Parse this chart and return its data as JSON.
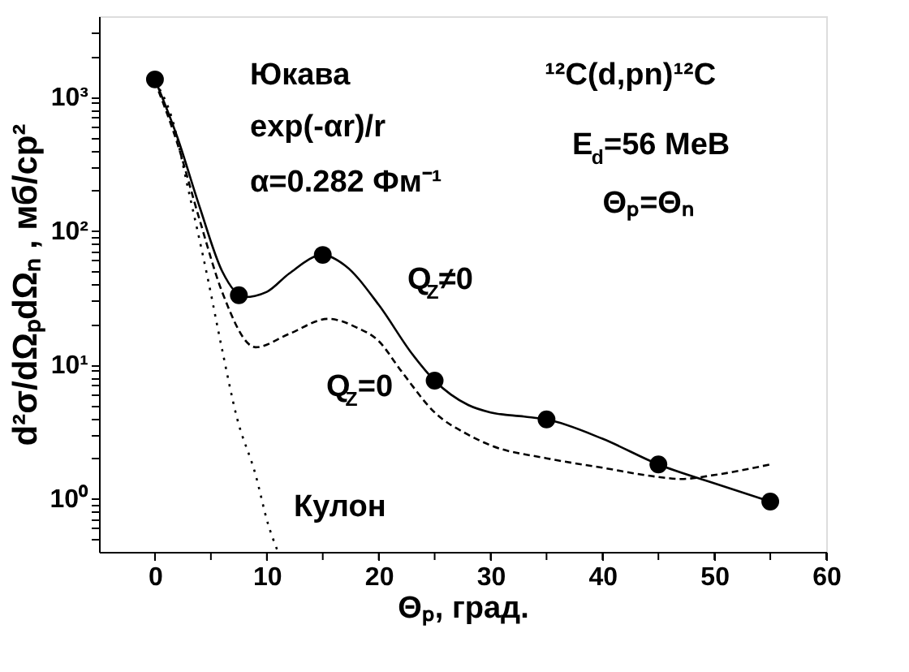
{
  "chart_data": {
    "type": "line",
    "xlabel": "Θₚ, град.",
    "ylabel": "d²σ/dΩₚdΩₙ , мб/ср²",
    "log": "y",
    "grid": false,
    "xlim": [
      -5,
      60
    ],
    "xticks": [
      0,
      {
        "value": 5,
        "label": null
      },
      10,
      {
        "value": 15,
        "label": null
      },
      20,
      {
        "value": 25,
        "label": null
      },
      30,
      {
        "value": 35,
        "label": null
      },
      40,
      {
        "value": 45,
        "label": null
      },
      50,
      {
        "value": 55,
        "label": null
      },
      60
    ],
    "ylim": [
      0.4,
      4000
    ],
    "yticks": [
      {
        "value": 0.5,
        "label": null
      },
      {
        "value": 0.6,
        "label": null
      },
      {
        "value": 0.7,
        "label": null
      },
      {
        "value": 0.8,
        "label": null
      },
      {
        "value": 0.9,
        "label": null
      },
      {
        "value": 1,
        "label": "10⁰"
      },
      {
        "value": 2,
        "label": null
      },
      {
        "value": 3,
        "label": null
      },
      {
        "value": 4,
        "label": null
      },
      {
        "value": 5,
        "label": null
      },
      {
        "value": 6,
        "label": null
      },
      {
        "value": 7,
        "label": null
      },
      {
        "value": 8,
        "label": null
      },
      {
        "value": 9,
        "label": null
      },
      {
        "value": 10,
        "label": "10¹"
      },
      {
        "value": 20,
        "label": null
      },
      {
        "value": 30,
        "label": null
      },
      {
        "value": 40,
        "label": null
      },
      {
        "value": 50,
        "label": null
      },
      {
        "value": 60,
        "label": null
      },
      {
        "value": 70,
        "label": null
      },
      {
        "value": 80,
        "label": null
      },
      {
        "value": 90,
        "label": null
      },
      {
        "value": 100,
        "label": "10²"
      },
      {
        "value": 200,
        "label": null
      },
      {
        "value": 300,
        "label": null
      },
      {
        "value": 400,
        "label": null
      },
      {
        "value": 500,
        "label": null
      },
      {
        "value": 600,
        "label": null
      },
      {
        "value": 700,
        "label": null
      },
      {
        "value": 800,
        "label": null
      },
      {
        "value": 900,
        "label": null
      },
      {
        "value": 1000,
        "label": "10³"
      },
      {
        "value": 2000,
        "label": null
      },
      {
        "value": 3000,
        "label": null
      }
    ],
    "series": [
      {
        "name": "Q$_{Z}$≠0",
        "line_style": "solid",
        "marker": "none",
        "color": "#000000",
        "x": [
          0,
          2,
          4,
          6,
          8,
          10,
          12,
          15,
          17,
          20,
          23,
          25,
          28,
          30,
          33,
          35,
          40,
          45,
          50,
          55
        ],
        "values": [
          1350,
          500,
          150,
          50,
          32,
          35,
          48,
          66,
          55,
          28,
          12,
          7.6,
          5,
          4.4,
          4.1,
          3.9,
          2.8,
          1.8,
          1.3,
          0.95
        ]
      },
      {
        "name": "Q$_{Z}$=0",
        "line_style": "dashed",
        "marker": "none",
        "color": "#000000",
        "x": [
          0,
          2,
          4,
          6,
          9,
          12,
          15.5,
          18,
          20,
          22,
          25,
          28,
          30,
          35,
          40,
          45,
          47,
          50,
          55
        ],
        "values": [
          1300,
          450,
          120,
          35,
          13.5,
          17,
          22,
          19,
          15,
          9,
          4.4,
          3,
          2.5,
          2,
          1.7,
          1.45,
          1.4,
          1.5,
          1.8
        ]
      },
      {
        "name": "Кулон",
        "line_style": "dotted",
        "marker": "none",
        "color": "#000000",
        "x": [
          0,
          1.5,
          3,
          4.7,
          6,
          7.3,
          9,
          10.1,
          11
        ],
        "values": [
          1300,
          700,
          200,
          45,
          13,
          4.1,
          1.5,
          0.65,
          0.4
        ]
      },
      {
        "type": "scatter",
        "marker": "circle",
        "color": "#000000",
        "x": [
          0,
          7.5,
          15,
          25,
          35,
          45,
          55
        ],
        "values": [
          1350,
          33,
          66,
          7.6,
          3.9,
          1.8,
          0.95
        ]
      }
    ],
    "annotations": [
      "Юкава",
      "exp(-αr)/r",
      "α=0.282 Фм⁻¹",
      "¹²C(d,pn)¹²C",
      "E$_{d}$=56 MeB",
      "Θₚ=Θₙ"
    ]
  }
}
